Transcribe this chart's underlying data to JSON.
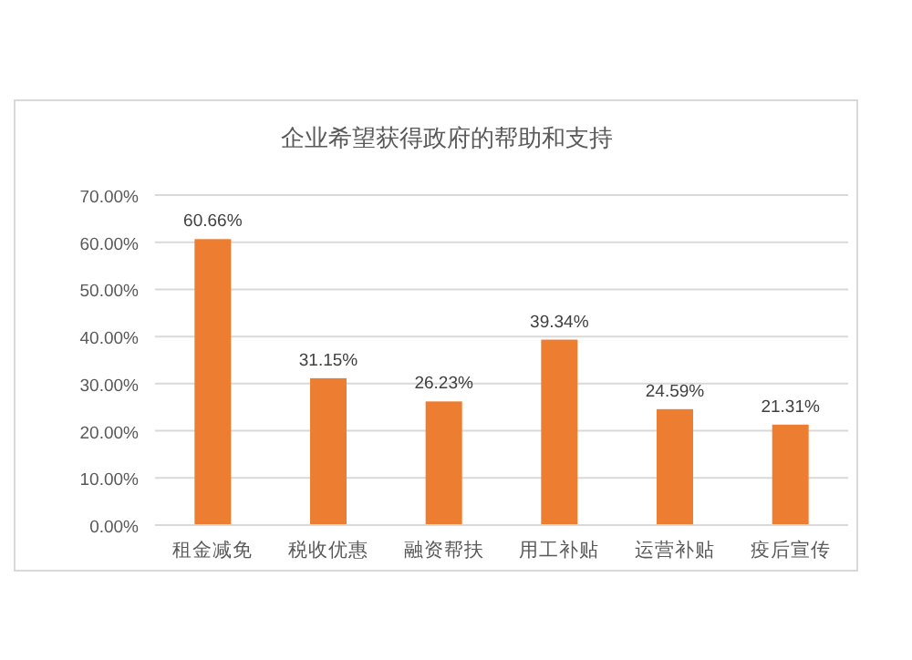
{
  "chart_data": {
    "type": "bar",
    "title": "企业希望获得政府的帮助和支持",
    "categories": [
      "租金减免",
      "税收优惠",
      "融资帮扶",
      "用工补贴",
      "运营补贴",
      "疫后宣传"
    ],
    "values": [
      60.66,
      31.15,
      26.23,
      39.34,
      24.59,
      21.31
    ],
    "value_labels": [
      "60.66%",
      "31.15%",
      "26.23%",
      "39.34%",
      "24.59%",
      "21.31%"
    ],
    "color": "#ed7d31",
    "ylim": [
      0,
      70
    ],
    "yticks": [
      {
        "value": 0,
        "label": "0.00%"
      },
      {
        "value": 10,
        "label": "10.00%"
      },
      {
        "value": 20,
        "label": "20.00%"
      },
      {
        "value": 30,
        "label": "30.00%"
      },
      {
        "value": 40,
        "label": "40.00%"
      },
      {
        "value": 50,
        "label": "50.00%"
      },
      {
        "value": 60,
        "label": "60.00%"
      },
      {
        "value": 70,
        "label": "70.00%"
      }
    ],
    "grid": "y"
  }
}
